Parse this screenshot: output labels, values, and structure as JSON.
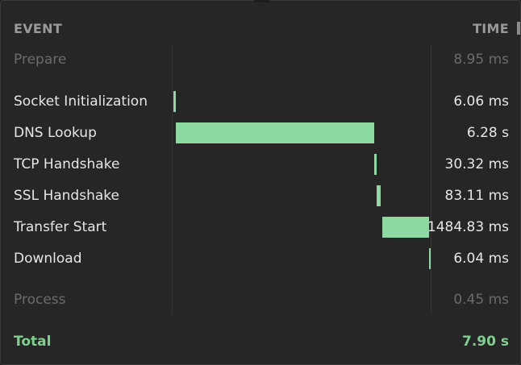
{
  "header": {
    "event_label": "EVENT",
    "time_label": "TIME"
  },
  "phases": {
    "prepare": {
      "label": "Prepare",
      "time": "8.95 ms"
    },
    "process": {
      "label": "Process",
      "time": "0.45 ms"
    }
  },
  "events": [
    {
      "label": "Socket Initialization",
      "time": "6.06 ms"
    },
    {
      "label": "DNS Lookup",
      "time": "6.28 s"
    },
    {
      "label": "TCP Handshake",
      "time": "30.32 ms"
    },
    {
      "label": "SSL Handshake",
      "time": "83.11 ms"
    },
    {
      "label": "Transfer Start",
      "time": "1484.83 ms"
    },
    {
      "label": "Download",
      "time": "6.04 ms"
    }
  ],
  "total": {
    "label": "Total",
    "time": "7.90 s"
  },
  "colors": {
    "bar": "#8cd9a1",
    "total": "#7fcf8f",
    "muted": "#6b6b6b"
  }
}
